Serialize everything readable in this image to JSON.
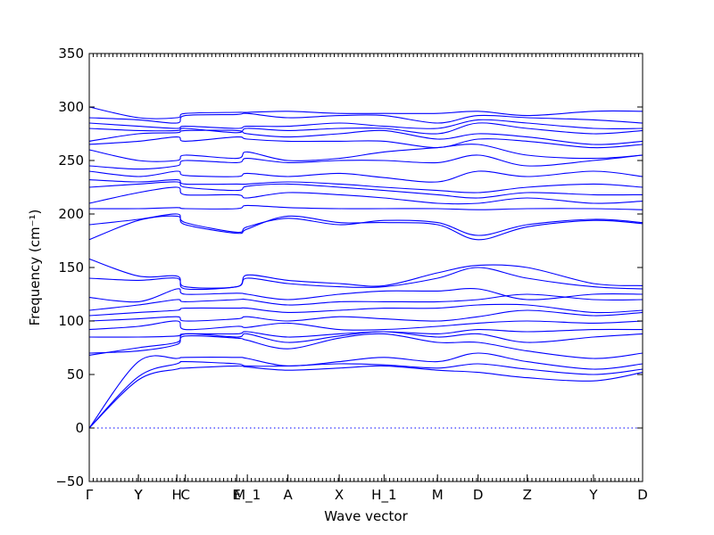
{
  "chart_data": {
    "type": "line",
    "xlabel": "Wave vector",
    "ylabel": "Frequency (cm⁻¹)",
    "ylim": [
      -50,
      350
    ],
    "yticks": [
      -50,
      0,
      50,
      100,
      150,
      200,
      250,
      300,
      350
    ],
    "xlim": [
      0,
      25.9
    ],
    "grid": false,
    "high_symmetry_points": [
      {
        "label": "Γ",
        "x": 0
      },
      {
        "label": "Y",
        "x": 2.3
      },
      {
        "label": "Y",
        "x": 2.3
      },
      {
        "label": "H",
        "x": 4.1
      },
      {
        "label": "C",
        "x": 4.5
      },
      {
        "label": "E",
        "x": 6.9
      },
      {
        "label": "M_1",
        "x": 7.4
      },
      {
        "label": "A",
        "x": 9.3
      },
      {
        "label": "X",
        "x": 11.7
      },
      {
        "label": "H_1",
        "x": 13.8
      },
      {
        "label": "M",
        "x": 16.3
      },
      {
        "label": "D",
        "x": 18.2
      },
      {
        "label": "Z",
        "x": 20.5
      },
      {
        "label": "Y",
        "x": 23.6
      },
      {
        "label": "D",
        "x": 25.9
      }
    ],
    "zero_line": 0,
    "series": [
      {
        "values": [
          0,
          45,
          55,
          56,
          58,
          57,
          54,
          56,
          58,
          54,
          52,
          47,
          44,
          52
        ]
      },
      {
        "values": [
          0,
          48,
          60,
          62,
          60,
          58,
          58,
          60,
          59,
          56,
          60,
          55,
          50,
          55
        ]
      },
      {
        "values": [
          0,
          62,
          65,
          66,
          66,
          65,
          58,
          62,
          66,
          62,
          70,
          62,
          55,
          60
        ]
      },
      {
        "values": [
          70,
          72,
          78,
          86,
          84,
          82,
          74,
          84,
          88,
          80,
          80,
          72,
          65,
          70
        ]
      },
      {
        "values": [
          68,
          75,
          80,
          88,
          85,
          88,
          80,
          86,
          90,
          85,
          88,
          80,
          85,
          88
        ]
      },
      {
        "values": [
          85,
          85,
          86,
          88,
          88,
          90,
          85,
          88,
          90,
          88,
          92,
          90,
          92,
          92
        ]
      },
      {
        "values": [
          92,
          95,
          100,
          92,
          95,
          94,
          98,
          92,
          92,
          95,
          98,
          100,
          98,
          100
        ]
      },
      {
        "values": [
          100,
          102,
          104,
          100,
          102,
          104,
          100,
          104,
          102,
          100,
          104,
          110,
          105,
          108
        ]
      },
      {
        "values": [
          105,
          108,
          110,
          112,
          112,
          112,
          108,
          110,
          112,
          112,
          115,
          115,
          108,
          110
        ]
      },
      {
        "values": [
          110,
          115,
          120,
          118,
          120,
          120,
          115,
          118,
          118,
          118,
          120,
          125,
          120,
          120
        ]
      },
      {
        "values": [
          122,
          118,
          130,
          125,
          126,
          125,
          120,
          125,
          128,
          128,
          130,
          120,
          125,
          125
        ]
      },
      {
        "values": [
          140,
          138,
          140,
          130,
          132,
          140,
          135,
          132,
          132,
          140,
          150,
          140,
          132,
          130
        ]
      },
      {
        "values": [
          158,
          142,
          142,
          132,
          132,
          143,
          138,
          135,
          133,
          145,
          152,
          150,
          135,
          133
        ]
      },
      {
        "values": [
          176,
          194,
          198,
          190,
          182,
          186,
          198,
          192,
          192,
          190,
          176,
          188,
          194,
          191
        ]
      },
      {
        "values": [
          190,
          195,
          200,
          192,
          183,
          188,
          196,
          190,
          194,
          192,
          180,
          190,
          195,
          192
        ]
      },
      {
        "values": [
          205,
          205,
          206,
          205,
          205,
          208,
          206,
          205,
          205,
          205,
          204,
          205,
          205,
          204
        ]
      },
      {
        "values": [
          210,
          220,
          225,
          218,
          218,
          215,
          220,
          218,
          215,
          210,
          210,
          215,
          210,
          212
        ]
      },
      {
        "values": [
          225,
          228,
          230,
          225,
          222,
          226,
          228,
          225,
          222,
          218,
          215,
          220,
          218,
          218
        ]
      },
      {
        "values": [
          232,
          230,
          232,
          228,
          228,
          228,
          230,
          228,
          225,
          222,
          220,
          225,
          228,
          225
        ]
      },
      {
        "values": [
          240,
          235,
          240,
          236,
          235,
          238,
          235,
          238,
          234,
          230,
          240,
          235,
          240,
          235
        ]
      },
      {
        "values": [
          245,
          242,
          245,
          250,
          248,
          252,
          248,
          250,
          250,
          248,
          255,
          245,
          250,
          255
        ]
      },
      {
        "values": [
          260,
          250,
          250,
          255,
          252,
          258,
          250,
          252,
          258,
          262,
          265,
          255,
          252,
          255
        ]
      },
      {
        "values": [
          265,
          268,
          272,
          268,
          272,
          270,
          268,
          268,
          268,
          262,
          270,
          268,
          262,
          265
        ]
      },
      {
        "values": [
          268,
          275,
          276,
          278,
          278,
          275,
          272,
          275,
          278,
          270,
          275,
          272,
          265,
          268
        ]
      },
      {
        "values": [
          280,
          278,
          278,
          280,
          276,
          280,
          278,
          280,
          280,
          275,
          285,
          280,
          275,
          278
        ]
      },
      {
        "values": [
          285,
          282,
          280,
          282,
          280,
          282,
          282,
          285,
          282,
          280,
          288,
          285,
          280,
          280
        ]
      },
      {
        "values": [
          290,
          288,
          285,
          292,
          293,
          294,
          290,
          292,
          292,
          285,
          292,
          290,
          288,
          285
        ]
      },
      {
        "values": [
          300,
          290,
          290,
          294,
          295,
          295,
          296,
          294,
          294,
          294,
          296,
          292,
          296,
          296
        ]
      }
    ]
  }
}
